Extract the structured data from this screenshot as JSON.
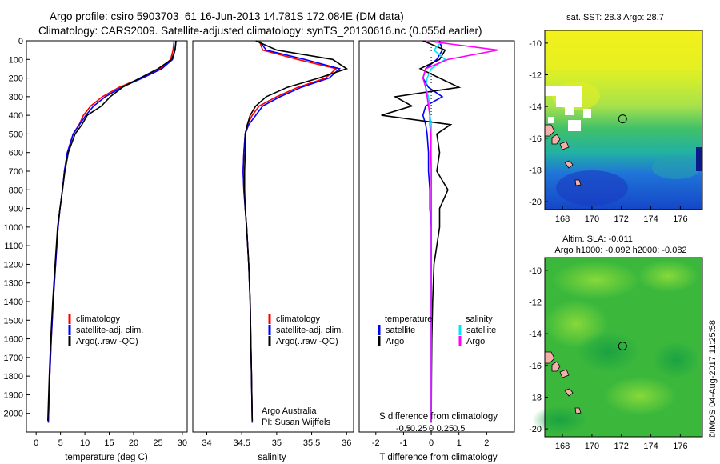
{
  "header": {
    "line1": "Argo profile: csiro 5903703_61 16-Jun-2013 14.781S 172.084E (DM data)",
    "line2": "Climatology: CARS2009. Satellite-adjusted climatology: synTS_20130616.nc (0.055d earlier)"
  },
  "footer_stamp": "©IMOS 04-Aug-2017 11:25:58",
  "colors": {
    "climatology": "#ff0000",
    "satellite": "#0000ff",
    "argo": "#000000",
    "salinity_satellite": "#00e5ff",
    "salinity_argo": "#ff00ff"
  },
  "chart_data": [
    {
      "type": "line",
      "xlabel": "temperature (deg C)",
      "ylabel": "",
      "xlim": [
        -2,
        31
      ],
      "ylim": [
        2100,
        0
      ],
      "xticks": [
        "0",
        "5",
        "10",
        "15",
        "20",
        "25",
        "30"
      ],
      "yticks": [
        "0",
        "100",
        "200",
        "300",
        "400",
        "500",
        "600",
        "700",
        "800",
        "900",
        "1000",
        "1100",
        "1200",
        "1300",
        "1400",
        "1500",
        "1600",
        "1700",
        "1800",
        "1900",
        "2000"
      ],
      "legend": [
        "climatology",
        "satellite-adj. clim.",
        "Argo(..raw -QC)"
      ],
      "legend_placement": "lower-center",
      "series": [
        {
          "name": "climatology",
          "x": [
            28.3,
            28.1,
            27.6,
            25.5,
            21.5,
            17.0,
            13.6,
            11.2,
            9.7,
            8.8,
            7.6,
            6.4,
            5.8,
            5.4,
            4.9,
            4.5,
            4.0,
            3.5,
            3.1,
            2.8,
            2.5
          ],
          "y": [
            0,
            50,
            100,
            150,
            200,
            250,
            300,
            350,
            400,
            450,
            500,
            600,
            700,
            800,
            900,
            1000,
            1200,
            1400,
            1600,
            1800,
            2050
          ]
        },
        {
          "name": "satellite-adj. clim.",
          "x": [
            28.7,
            28.5,
            28.0,
            25.8,
            21.8,
            17.5,
            14.2,
            11.8,
            10.2,
            8.9,
            7.6,
            6.4,
            5.8,
            5.4,
            4.9,
            4.5,
            4.0,
            3.5,
            3.1,
            2.8,
            2.5
          ],
          "y": [
            0,
            50,
            100,
            150,
            200,
            250,
            300,
            350,
            400,
            450,
            500,
            600,
            700,
            800,
            900,
            1000,
            1200,
            1400,
            1600,
            1800,
            2050
          ]
        },
        {
          "name": "Argo(..raw -QC)",
          "x": [
            28.7,
            28.5,
            27.8,
            25.0,
            21.3,
            17.7,
            15.2,
            13.4,
            10.5,
            9.4,
            8.0,
            6.6,
            5.9,
            5.4,
            4.9,
            4.4,
            3.9,
            3.4,
            3.0,
            2.7,
            2.4
          ],
          "y": [
            0,
            50,
            100,
            150,
            200,
            250,
            300,
            350,
            400,
            450,
            500,
            600,
            700,
            800,
            900,
            1000,
            1200,
            1400,
            1600,
            1800,
            2040
          ]
        }
      ]
    },
    {
      "type": "line",
      "xlabel": "salinity",
      "ylabel": "",
      "xlim": [
        33.8,
        36.1
      ],
      "ylim": [
        2100,
        0
      ],
      "xticks": [
        "34",
        "34.5",
        "35",
        "35.5",
        "36"
      ],
      "legend": [
        "climatology",
        "satellite-adj. clim.",
        "Argo(..raw -QC)"
      ],
      "legend_placement": "lower-center",
      "annotation": [
        "Argo Australia",
        "PI: Susan Wijffels"
      ],
      "series": [
        {
          "name": "climatology",
          "x": [
            34.75,
            34.8,
            35.3,
            35.85,
            35.7,
            35.3,
            35.0,
            34.75,
            34.65,
            34.58,
            34.55,
            34.53,
            34.52,
            34.53,
            34.55,
            34.57,
            34.6,
            34.62,
            34.63,
            34.64,
            34.65
          ],
          "y": [
            0,
            50,
            100,
            150,
            200,
            250,
            300,
            350,
            400,
            450,
            500,
            600,
            700,
            800,
            900,
            1000,
            1200,
            1400,
            1600,
            1800,
            2050
          ]
        },
        {
          "name": "satellite-adj. clim.",
          "x": [
            34.75,
            34.85,
            35.4,
            35.9,
            35.75,
            35.35,
            35.05,
            34.8,
            34.7,
            34.6,
            34.55,
            34.53,
            34.52,
            34.53,
            34.55,
            34.57,
            34.6,
            34.62,
            34.63,
            34.64,
            34.65
          ],
          "y": [
            0,
            50,
            100,
            150,
            200,
            250,
            300,
            350,
            400,
            450,
            500,
            600,
            700,
            800,
            900,
            1000,
            1200,
            1400,
            1600,
            1800,
            2050
          ]
        },
        {
          "name": "Argo(..raw -QC)",
          "x": [
            34.7,
            35.0,
            35.8,
            36.0,
            35.6,
            35.15,
            34.85,
            34.7,
            34.62,
            34.58,
            34.55,
            34.55,
            34.54,
            34.54,
            34.55,
            34.57,
            34.6,
            34.62,
            34.63,
            34.64,
            34.65
          ],
          "y": [
            0,
            50,
            100,
            150,
            200,
            250,
            300,
            350,
            400,
            450,
            500,
            600,
            700,
            800,
            900,
            1000,
            1200,
            1400,
            1600,
            1800,
            2040
          ]
        }
      ]
    },
    {
      "type": "line",
      "xlabel": "T difference from climatology",
      "ylabel": "",
      "title_bottom": "S difference from climatology",
      "xlim": [
        -2.6,
        3.0
      ],
      "ylim": [
        2100,
        0
      ],
      "xticks": [
        "-2",
        "-1",
        "0",
        "1",
        "2"
      ],
      "top_axis_ticks": [
        "-0.5",
        "-0.25",
        "0",
        "0.25",
        "0.5"
      ],
      "legend_titles": [
        "temperature",
        "salinity"
      ],
      "legend": [
        "satellite",
        "Argo",
        "satellite",
        "Argo"
      ],
      "legend_placement": "middle",
      "series": [
        {
          "name": "satellite",
          "x": [
            0.3,
            0.4,
            0.2,
            -0.2,
            -0.3,
            -0.1,
            0.4,
            -0.2,
            -0.3,
            -0.2,
            -0.15,
            -0.1,
            -0.1,
            -0.05,
            -0.05,
            0,
            0,
            0,
            0,
            0,
            0
          ],
          "y": [
            0,
            50,
            100,
            150,
            200,
            250,
            300,
            350,
            400,
            450,
            500,
            600,
            700,
            800,
            900,
            1000,
            1200,
            1400,
            1600,
            1800,
            2050
          ]
        },
        {
          "name": "Argo",
          "x": [
            -0.3,
            0.5,
            0.3,
            -0.4,
            0.3,
            1.0,
            -1.3,
            -0.7,
            -1.8,
            0.7,
            0.2,
            0.3,
            0.2,
            0.6,
            0.3,
            0.3,
            0.1,
            0.05,
            0.02,
            0.01,
            0
          ],
          "y": [
            0,
            50,
            100,
            150,
            200,
            250,
            300,
            350,
            400,
            450,
            500,
            600,
            700,
            800,
            900,
            1000,
            1200,
            1400,
            1600,
            1800,
            2050
          ]
        },
        {
          "name": "satellite",
          "x": [
            0.4,
            0.1,
            0.5,
            0.0,
            -0.15,
            -0.2,
            -0.1,
            -0.05,
            -0.05,
            0.0,
            0.0,
            0,
            0,
            0,
            0,
            0,
            0,
            0,
            0,
            0,
            0
          ],
          "y": [
            0,
            50,
            100,
            150,
            200,
            250,
            300,
            350,
            400,
            450,
            500,
            600,
            700,
            800,
            900,
            1000,
            1200,
            1400,
            1600,
            1800,
            2050
          ]
        },
        {
          "name": "Argo",
          "x": [
            -0.2,
            2.4,
            0.6,
            -0.2,
            -0.3,
            -0.2,
            -0.15,
            -0.1,
            -0.05,
            -0.05,
            -0.02,
            -0.02,
            0,
            0,
            0,
            0,
            0,
            0,
            0,
            0,
            0
          ],
          "y": [
            0,
            50,
            100,
            150,
            200,
            250,
            300,
            350,
            400,
            450,
            500,
            600,
            700,
            800,
            900,
            1000,
            1200,
            1400,
            1600,
            1800,
            2050
          ]
        }
      ]
    },
    {
      "type": "heatmap",
      "title": "sat. SST: 28.3 Argo: 28.7",
      "xlim": [
        166.8,
        177.5
      ],
      "ylim": [
        -20.5,
        -9.2
      ],
      "xticks": [
        "168",
        "170",
        "172",
        "174",
        "176"
      ],
      "yticks": [
        "-10",
        "-12",
        "-14",
        "-16",
        "-18",
        "-20"
      ],
      "marker": {
        "lon": 172.084,
        "lat": -14.781
      }
    },
    {
      "type": "heatmap",
      "title": "Altim. SLA: -0.011",
      "subtitle": "Argo h1000: -0.092 h2000: -0.082",
      "xlim": [
        166.8,
        177.5
      ],
      "ylim": [
        -20.5,
        -9.2
      ],
      "xticks": [
        "168",
        "170",
        "172",
        "174",
        "176"
      ],
      "yticks": [
        "-10",
        "-12",
        "-14",
        "-16",
        "-18",
        "-20"
      ],
      "marker": {
        "lon": 172.084,
        "lat": -14.781
      }
    }
  ]
}
